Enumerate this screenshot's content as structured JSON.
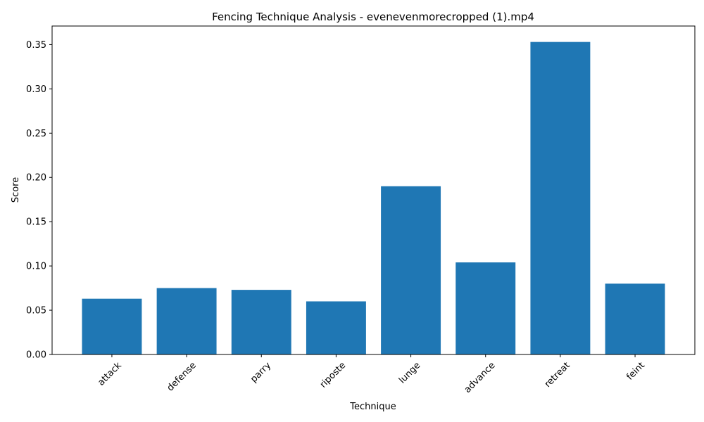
{
  "chart_data": {
    "type": "bar",
    "title": "Fencing Technique Analysis - evenevenmorecropped (1).mp4",
    "xlabel": "Technique",
    "ylabel": "Score",
    "categories": [
      "attack",
      "defense",
      "parry",
      "riposte",
      "lunge",
      "advance",
      "retreat",
      "feint"
    ],
    "values": [
      0.063,
      0.075,
      0.073,
      0.06,
      0.19,
      0.104,
      0.353,
      0.08
    ],
    "ylim": [
      0,
      0.371
    ],
    "yticks": [
      "0.00",
      "0.05",
      "0.10",
      "0.15",
      "0.20",
      "0.25",
      "0.30",
      "0.35"
    ],
    "grid": false,
    "legend": "none",
    "bar_color": "#1f77b4"
  }
}
